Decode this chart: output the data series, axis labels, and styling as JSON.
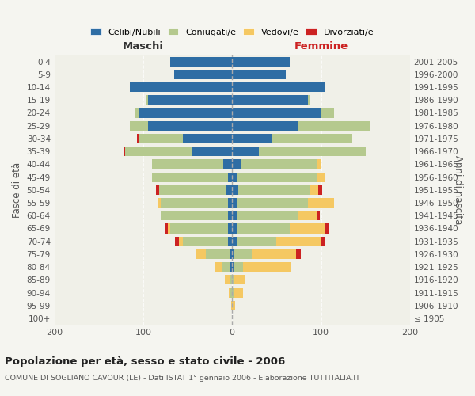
{
  "age_groups": [
    "100+",
    "95-99",
    "90-94",
    "85-89",
    "80-84",
    "75-79",
    "70-74",
    "65-69",
    "60-64",
    "55-59",
    "50-54",
    "45-49",
    "40-44",
    "35-39",
    "30-34",
    "25-29",
    "20-24",
    "15-19",
    "10-14",
    "5-9",
    "0-4"
  ],
  "birth_years": [
    "≤ 1905",
    "1906-1910",
    "1911-1915",
    "1916-1920",
    "1921-1925",
    "1926-1930",
    "1931-1935",
    "1936-1940",
    "1941-1945",
    "1946-1950",
    "1951-1955",
    "1956-1960",
    "1961-1965",
    "1966-1970",
    "1971-1975",
    "1976-1980",
    "1981-1985",
    "1986-1990",
    "1991-1995",
    "1996-2000",
    "2001-2005"
  ],
  "male": {
    "celibi": [
      0,
      0,
      0,
      0,
      2,
      2,
      5,
      5,
      5,
      5,
      7,
      5,
      10,
      45,
      55,
      95,
      105,
      95,
      115,
      65,
      70
    ],
    "coniugati": [
      0,
      0,
      2,
      3,
      10,
      28,
      50,
      65,
      75,
      75,
      75,
      85,
      80,
      75,
      50,
      20,
      5,
      2,
      0,
      0,
      0
    ],
    "vedovi": [
      0,
      1,
      2,
      5,
      8,
      10,
      5,
      2,
      0,
      3,
      0,
      0,
      0,
      0,
      0,
      0,
      0,
      0,
      0,
      0,
      0
    ],
    "divorziati": [
      0,
      0,
      0,
      0,
      0,
      0,
      4,
      4,
      0,
      0,
      4,
      0,
      0,
      2,
      2,
      0,
      0,
      0,
      0,
      0,
      0
    ]
  },
  "female": {
    "nubili": [
      0,
      0,
      0,
      0,
      2,
      2,
      5,
      5,
      5,
      5,
      7,
      5,
      10,
      30,
      45,
      75,
      100,
      85,
      105,
      60,
      65
    ],
    "coniugate": [
      0,
      0,
      2,
      2,
      10,
      20,
      45,
      60,
      70,
      80,
      80,
      90,
      85,
      120,
      90,
      80,
      15,
      3,
      0,
      0,
      0
    ],
    "vedove": [
      0,
      3,
      10,
      12,
      55,
      50,
      50,
      40,
      20,
      30,
      10,
      10,
      5,
      0,
      0,
      0,
      0,
      0,
      0,
      0,
      0
    ],
    "divorziate": [
      0,
      0,
      0,
      0,
      0,
      5,
      5,
      4,
      4,
      0,
      4,
      0,
      0,
      0,
      0,
      0,
      0,
      0,
      0,
      0,
      0
    ]
  },
  "colors": {
    "celibi_nubili": "#2e6da4",
    "coniugati": "#b5c98e",
    "vedovi": "#f5c862",
    "divorziati": "#cc2222"
  },
  "xlim": 200,
  "title": "Popolazione per età, sesso e stato civile - 2006",
  "subtitle": "COMUNE DI SOGLIANO CAVOUR (LE) - Dati ISTAT 1° gennaio 2006 - Elaborazione TUTTITALIA.IT",
  "ylabel_left": "Fasce di età",
  "ylabel_right": "Anni di nascita",
  "xlabel_male": "Maschi",
  "xlabel_female": "Femmine",
  "legend_labels": [
    "Celibi/Nubili",
    "Coniugati/e",
    "Vedovi/e",
    "Divorziati/e"
  ],
  "bg_color": "#f5f5f0",
  "plot_bg": "#f0f0e8"
}
